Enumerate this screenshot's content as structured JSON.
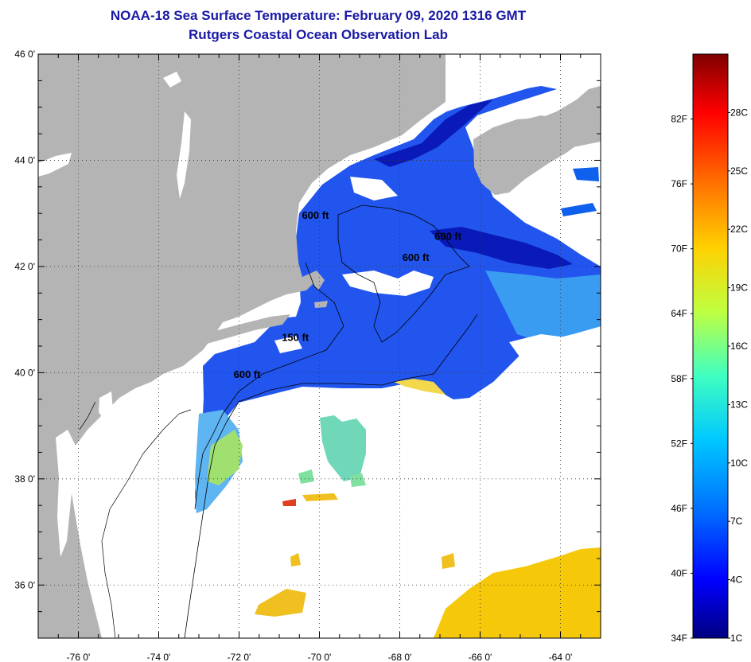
{
  "header": {
    "title": "NOAA-18 Sea Surface Temperature:  February 09, 2020 1316 GMT",
    "subtitle": "Rutgers Coastal Ocean Observation Lab"
  },
  "map": {
    "lon_range": [
      -77,
      -63
    ],
    "lat_range": [
      35,
      46
    ],
    "lat_ticks": [
      {
        "value": 46,
        "label": "46 0'"
      },
      {
        "value": 44,
        "label": "44 0'"
      },
      {
        "value": 42,
        "label": "42 0'"
      },
      {
        "value": 40,
        "label": "40 0'"
      },
      {
        "value": 38,
        "label": "38 0'"
      },
      {
        "value": 36,
        "label": "36 0'"
      }
    ],
    "lon_ticks": [
      {
        "value": -76,
        "label": "-76 0'"
      },
      {
        "value": -74,
        "label": "-74 0'"
      },
      {
        "value": -72,
        "label": "-72 0'"
      },
      {
        "value": -70,
        "label": "-70 0'"
      },
      {
        "value": -68,
        "label": "-68 0'"
      },
      {
        "value": -66,
        "label": "-66 0'"
      },
      {
        "value": -64,
        "label": "-64 0'"
      }
    ],
    "contour_labels": [
      {
        "text": "600 ft",
        "lon": -70.1,
        "lat": 42.9
      },
      {
        "text": "600 ft",
        "lon": -66.8,
        "lat": 42.5
      },
      {
        "text": "600 ft",
        "lon": -67.6,
        "lat": 42.1
      },
      {
        "text": "150 ft",
        "lon": -70.6,
        "lat": 40.6
      },
      {
        "text": "600 ft",
        "lon": -71.8,
        "lat": 39.9
      }
    ],
    "colors": {
      "land": "#b4b4b4",
      "background": "#ffffff",
      "grid": "#555555"
    }
  },
  "colorbar": {
    "fahrenheit_labels": [
      "82F",
      "76F",
      "70F",
      "64F",
      "58F",
      "52F",
      "46F",
      "40F",
      "34F"
    ],
    "celsius_labels": [
      "28C",
      "25C",
      "22C",
      "19C",
      "16C",
      "13C",
      "10C",
      "7C",
      "4C",
      "1C"
    ],
    "colors": [
      "#000080",
      "#0000ff",
      "#0070ff",
      "#00c8ff",
      "#40ffc0",
      "#c0ff40",
      "#ffd000",
      "#ff7000",
      "#ff0000",
      "#800000"
    ]
  }
}
